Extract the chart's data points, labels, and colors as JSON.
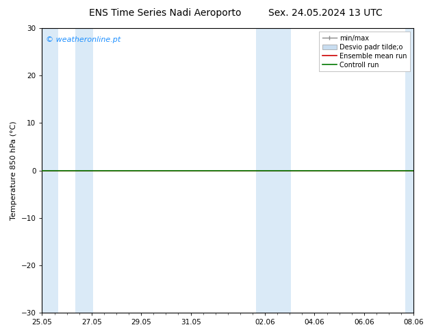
{
  "title_left": "ENS Time Series Nadi Aeroporto",
  "title_right": "Sex. 24.05.2024 13 UTC",
  "ylabel": "Temperature 850 hPa (°C)",
  "watermark": "© weatheronline.pt",
  "watermark_color": "#1e90ff",
  "ylim": [
    -30,
    30
  ],
  "yticks": [
    -30,
    -20,
    -10,
    0,
    10,
    20,
    30
  ],
  "background_color": "#ffffff",
  "plot_bg_color": "#ffffff",
  "shaded_band_color": "#daeaf7",
  "ensemble_mean_color": "#cc0000",
  "control_run_color": "#007700",
  "minmax_color": "#888888",
  "stddev_color": "#c8ddf0",
  "num_days": 15,
  "shaded_x": [
    [
      0.0,
      0.7
    ],
    [
      1.4,
      2.1
    ],
    [
      8.5,
      9.2
    ],
    [
      9.2,
      9.9
    ],
    [
      14.5,
      15.0
    ]
  ],
  "xtick_positions": [
    0,
    2,
    4,
    6,
    9,
    11,
    13,
    15
  ],
  "xtick_labels": [
    "25.05",
    "27.05",
    "29.05",
    "31.05",
    "02.06",
    "04.06",
    "06.06",
    "08.06"
  ],
  "legend_labels": [
    "min/max",
    "Desvio padr tilde;o",
    "Ensemble mean run",
    "Controll run"
  ],
  "title_fontsize": 10,
  "axis_label_fontsize": 8,
  "tick_fontsize": 7.5,
  "watermark_fontsize": 8,
  "legend_fontsize": 7
}
